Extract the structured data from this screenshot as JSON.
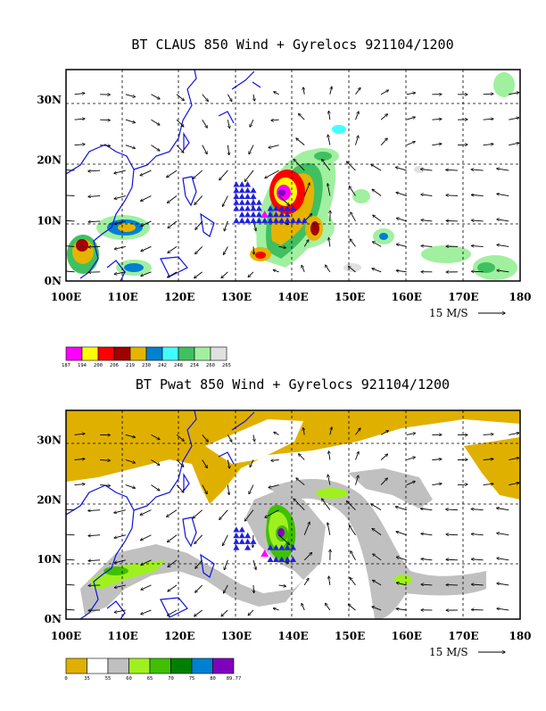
{
  "chart_data": [
    {
      "type": "heatmap",
      "title": "BT CLAUS 850 Wind + Gyrelocs 921104/1200",
      "xlim": [
        100,
        180
      ],
      "ylim": [
        0,
        35
      ],
      "xticks": [
        "100E",
        "110E",
        "120E",
        "130E",
        "140E",
        "150E",
        "160E",
        "170E",
        "180"
      ],
      "yticks": [
        "0N",
        "10N",
        "20N",
        "30N"
      ],
      "grid": true,
      "reference_vector_label": "15 M/S",
      "colorbar": {
        "labels": [
          "187",
          "194",
          "200",
          "206",
          "219",
          "230",
          "242",
          "248",
          "254",
          "260",
          "265"
        ],
        "colors": [
          "#ff00ff",
          "#ffff00",
          "#ff0000",
          "#a00000",
          "#e6b400",
          "#0080d0",
          "#40ffff",
          "#40c060",
          "#a0f0a0",
          "#e0e0e0"
        ]
      },
      "gyre_center": {
        "lon": 135,
        "lat": 11
      },
      "gyrelocs": [
        {
          "lon": 130,
          "lat": 16
        },
        {
          "lon": 131,
          "lat": 16
        },
        {
          "lon": 132,
          "lat": 16
        },
        {
          "lon": 130,
          "lat": 15
        },
        {
          "lon": 131,
          "lat": 15
        },
        {
          "lon": 132,
          "lat": 15
        },
        {
          "lon": 133,
          "lat": 15
        },
        {
          "lon": 130,
          "lat": 14
        },
        {
          "lon": 131,
          "lat": 14
        },
        {
          "lon": 132,
          "lat": 14
        },
        {
          "lon": 133,
          "lat": 14
        },
        {
          "lon": 130,
          "lat": 13
        },
        {
          "lon": 131,
          "lat": 13
        },
        {
          "lon": 132,
          "lat": 13
        },
        {
          "lon": 133,
          "lat": 13
        },
        {
          "lon": 134,
          "lat": 13
        },
        {
          "lon": 130,
          "lat": 12
        },
        {
          "lon": 131,
          "lat": 12
        },
        {
          "lon": 132,
          "lat": 12
        },
        {
          "lon": 133,
          "lat": 12
        },
        {
          "lon": 134,
          "lat": 12
        },
        {
          "lon": 136,
          "lat": 12
        },
        {
          "lon": 137,
          "lat": 12
        },
        {
          "lon": 138,
          "lat": 12
        },
        {
          "lon": 139,
          "lat": 12
        },
        {
          "lon": 140,
          "lat": 12
        },
        {
          "lon": 131,
          "lat": 11
        },
        {
          "lon": 132,
          "lat": 11
        },
        {
          "lon": 133,
          "lat": 11
        },
        {
          "lon": 134,
          "lat": 11
        },
        {
          "lon": 136,
          "lat": 11
        },
        {
          "lon": 137,
          "lat": 11
        },
        {
          "lon": 138,
          "lat": 11
        },
        {
          "lon": 139,
          "lat": 11
        },
        {
          "lon": 130,
          "lat": 10
        },
        {
          "lon": 131,
          "lat": 10
        },
        {
          "lon": 132,
          "lat": 10
        },
        {
          "lon": 133,
          "lat": 10
        },
        {
          "lon": 134,
          "lat": 10
        },
        {
          "lon": 135,
          "lat": 10
        },
        {
          "lon": 136,
          "lat": 10
        },
        {
          "lon": 137,
          "lat": 10
        },
        {
          "lon": 138,
          "lat": 10
        },
        {
          "lon": 139,
          "lat": 10
        },
        {
          "lon": 140,
          "lat": 10
        },
        {
          "lon": 141,
          "lat": 10
        },
        {
          "lon": 142,
          "lat": 10
        }
      ]
    },
    {
      "type": "heatmap",
      "title": "BT Pwat 850 Wind + Gyrelocs 921104/1200",
      "xlim": [
        100,
        180
      ],
      "ylim": [
        0,
        35
      ],
      "xticks": [
        "100E",
        "110E",
        "120E",
        "130E",
        "140E",
        "150E",
        "160E",
        "170E",
        "180"
      ],
      "yticks": [
        "0N",
        "10N",
        "20N",
        "30N"
      ],
      "grid": true,
      "reference_vector_label": "15 M/S",
      "colorbar": {
        "labels": [
          "0",
          "35",
          "55",
          "60",
          "65",
          "70",
          "75",
          "80",
          "89.77"
        ],
        "colors": [
          "#e0b000",
          "#ffffff",
          "#c0c0c0",
          "#a0f020",
          "#40c000",
          "#008000",
          "#0080d0",
          "#8000c0"
        ]
      },
      "gyre_center": {
        "lon": 135,
        "lat": 11
      },
      "gyrelocs": [
        {
          "lon": 130,
          "lat": 15
        },
        {
          "lon": 131,
          "lat": 15
        },
        {
          "lon": 130,
          "lat": 14
        },
        {
          "lon": 131,
          "lat": 14
        },
        {
          "lon": 132,
          "lat": 14
        },
        {
          "lon": 130,
          "lat": 13
        },
        {
          "lon": 131,
          "lat": 13
        },
        {
          "lon": 132,
          "lat": 13
        },
        {
          "lon": 133,
          "lat": 13
        },
        {
          "lon": 130,
          "lat": 12
        },
        {
          "lon": 132,
          "lat": 12
        },
        {
          "lon": 136,
          "lat": 12
        },
        {
          "lon": 137,
          "lat": 12
        },
        {
          "lon": 138,
          "lat": 12
        },
        {
          "lon": 139,
          "lat": 12
        },
        {
          "lon": 140,
          "lat": 12
        },
        {
          "lon": 136,
          "lat": 10
        },
        {
          "lon": 137,
          "lat": 10
        },
        {
          "lon": 138,
          "lat": 10
        },
        {
          "lon": 139,
          "lat": 10
        },
        {
          "lon": 140,
          "lat": 10
        }
      ]
    }
  ]
}
